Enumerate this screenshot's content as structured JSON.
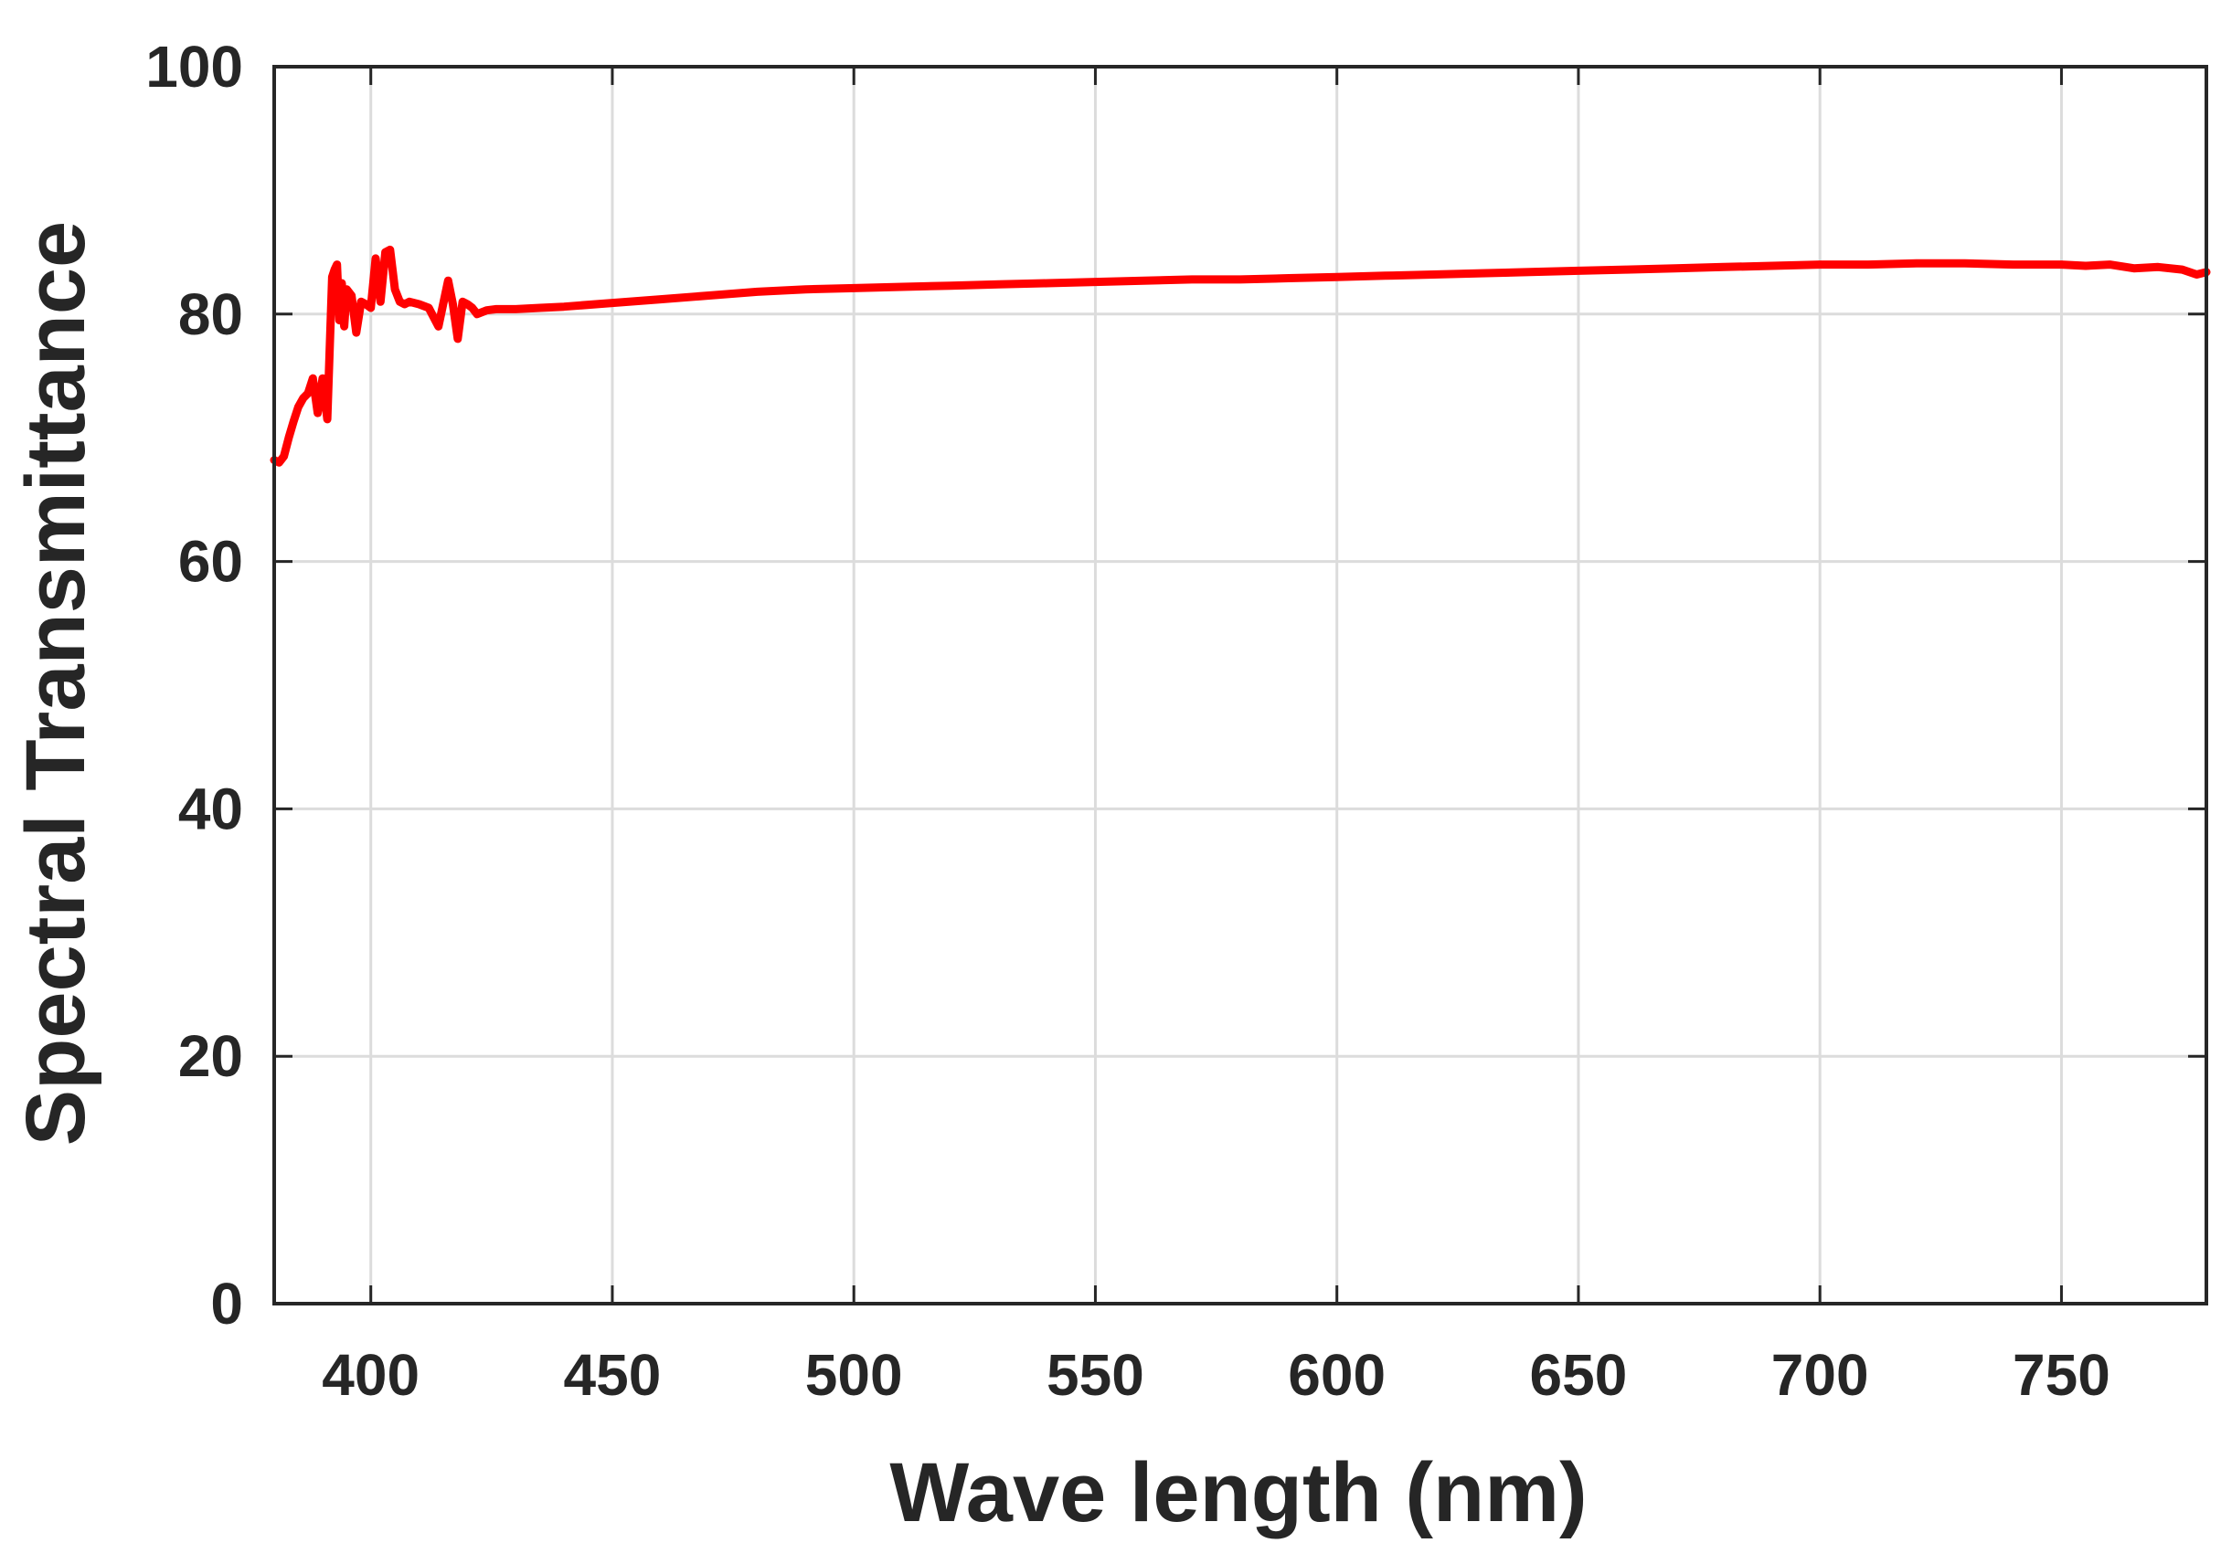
{
  "chart_data": {
    "type": "line",
    "title": "",
    "xlabel": "Wave length (nm)",
    "ylabel": "Spectral Transmittance",
    "xlim": [
      380,
      780
    ],
    "ylim": [
      0,
      100
    ],
    "xticks": [
      400,
      450,
      500,
      550,
      600,
      650,
      700,
      750
    ],
    "yticks": [
      0,
      20,
      40,
      60,
      80,
      100
    ],
    "xtick_labels": [
      "400",
      "450",
      "500",
      "550",
      "600",
      "650",
      "700",
      "750"
    ],
    "ytick_labels": [
      "0",
      "20",
      "40",
      "60",
      "80",
      "100"
    ],
    "grid": true,
    "series": [
      {
        "name": "Spectral Transmittance",
        "color": "#ff0000",
        "x": [
          380,
          381,
          382,
          383,
          384,
          385,
          386,
          387,
          388,
          389,
          390,
          391,
          392,
          392.5,
          393,
          393.5,
          394,
          394.5,
          395,
          396,
          397,
          398,
          399,
          400,
          401,
          402,
          403,
          404,
          405,
          406,
          407,
          408,
          410,
          412,
          414,
          416,
          417,
          418,
          419,
          420,
          421,
          422,
          424,
          426,
          428,
          430,
          435,
          440,
          450,
          460,
          470,
          480,
          490,
          500,
          510,
          520,
          530,
          540,
          550,
          560,
          570,
          580,
          590,
          600,
          610,
          620,
          630,
          640,
          650,
          660,
          670,
          680,
          690,
          700,
          710,
          720,
          730,
          740,
          750,
          755,
          760,
          765,
          770,
          775,
          778,
          780
        ],
        "y": [
          68.2,
          68.0,
          68.5,
          70.0,
          71.3,
          72.5,
          73.2,
          73.6,
          74.8,
          72.0,
          74.8,
          71.5,
          83.0,
          83.6,
          84.0,
          79.5,
          82.5,
          79.0,
          82.0,
          81.5,
          78.5,
          81.0,
          80.8,
          80.5,
          84.5,
          81.0,
          85.0,
          85.2,
          82.0,
          81.0,
          80.8,
          81.0,
          80.8,
          80.5,
          79.0,
          82.7,
          80.8,
          78.0,
          81.0,
          80.8,
          80.5,
          80.0,
          80.3,
          80.4,
          80.4,
          80.4,
          80.5,
          80.6,
          80.9,
          81.2,
          81.5,
          81.8,
          82.0,
          82.1,
          82.2,
          82.3,
          82.4,
          82.5,
          82.6,
          82.7,
          82.8,
          82.8,
          82.9,
          83.0,
          83.1,
          83.2,
          83.3,
          83.4,
          83.5,
          83.6,
          83.7,
          83.8,
          83.9,
          84.0,
          84.0,
          84.1,
          84.1,
          84.0,
          84.0,
          83.9,
          84.0,
          83.7,
          83.8,
          83.6,
          83.2,
          83.4
        ]
      }
    ]
  }
}
